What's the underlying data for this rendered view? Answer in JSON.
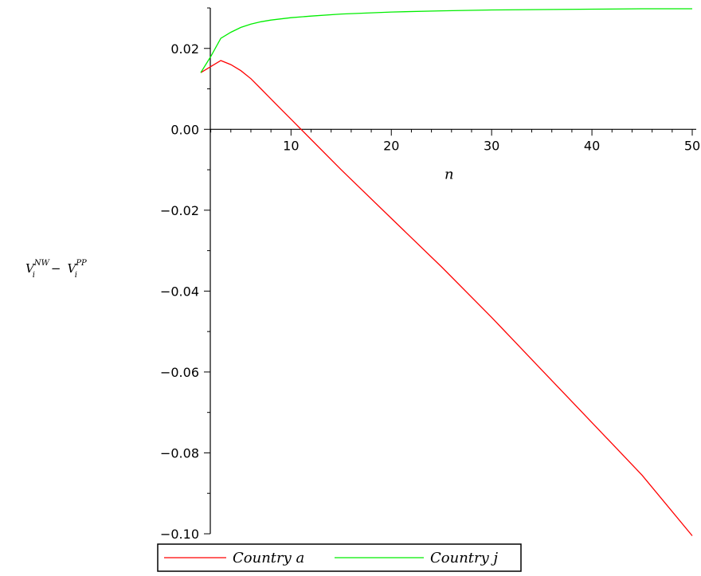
{
  "chart_data": {
    "type": "line",
    "xlabel": "n",
    "ylabel": {
      "v1": "V",
      "sub1": "i",
      "sup1": "NW",
      "minus": "−",
      "v2": "V",
      "sub2": "i",
      "sup2": "PP"
    },
    "xlim": [
      1,
      50
    ],
    "ylim": [
      -0.1,
      0.03
    ],
    "x_ticks": [
      10,
      20,
      30,
      40,
      50
    ],
    "x_tick_labels": [
      "10",
      "20",
      "30",
      "40",
      "50"
    ],
    "y_ticks": [
      0.02,
      0.0,
      -0.02,
      -0.04,
      -0.06,
      -0.08,
      -0.1
    ],
    "y_tick_labels": [
      "0.02",
      "0.00",
      "−0.02",
      "−0.04",
      "−0.06",
      "−0.08",
      "−0.10"
    ],
    "grid": false,
    "legend_position": "bottom-left",
    "series": [
      {
        "name": "Country a",
        "color": "#ff0000",
        "x": [
          1,
          2,
          3,
          4,
          5,
          6,
          7,
          8,
          9,
          10,
          12,
          15,
          20,
          25,
          30,
          35,
          40,
          45,
          50
        ],
        "y": [
          0.014,
          0.0155,
          0.017,
          0.016,
          0.0145,
          0.0125,
          0.01,
          0.0075,
          0.005,
          0.0025,
          -0.0025,
          -0.01,
          -0.022,
          -0.034,
          -0.0465,
          -0.0595,
          -0.0725,
          -0.0855,
          -0.1005
        ]
      },
      {
        "name": "Country j",
        "color": "#00ee00",
        "x": [
          1,
          2,
          3,
          4,
          5,
          6,
          7,
          8,
          10,
          12,
          15,
          20,
          25,
          30,
          35,
          40,
          45,
          50
        ],
        "y": [
          0.014,
          0.018,
          0.0225,
          0.024,
          0.0252,
          0.026,
          0.0266,
          0.027,
          0.0276,
          0.028,
          0.0285,
          0.029,
          0.0293,
          0.0295,
          0.0296,
          0.0297,
          0.0298,
          0.0298
        ]
      }
    ]
  }
}
